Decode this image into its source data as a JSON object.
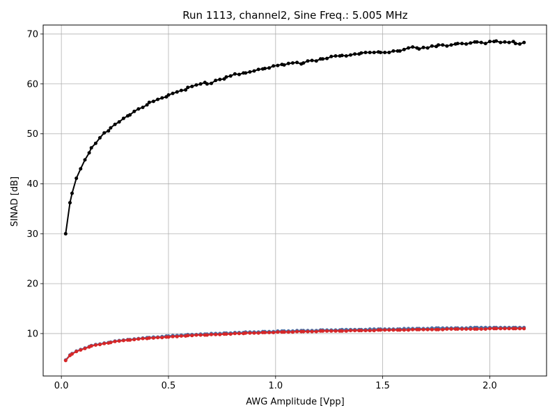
{
  "chart_data": {
    "type": "line",
    "title": "Run 1113, channel2, Sine Freq.: 5.005 MHz",
    "xlabel": "AWG Amplitude [Vpp]",
    "ylabel": "SINAD [dB]",
    "xlim": [
      -0.085,
      2.265
    ],
    "ylim": [
      1.5,
      71.8
    ],
    "xticks": [
      0.0,
      0.5,
      1.0,
      1.5,
      2.0
    ],
    "xtick_labels": [
      "0.0",
      "0.5",
      "1.0",
      "1.5",
      "2.0"
    ],
    "yticks": [
      10,
      20,
      30,
      40,
      50,
      60,
      70
    ],
    "ytick_labels": [
      "10",
      "20",
      "30",
      "40",
      "50",
      "60",
      "70"
    ],
    "grid": true,
    "series": [
      {
        "color": "#000000",
        "x": [
          0.02,
          0.04,
          0.05,
          0.07,
          0.09,
          0.11,
          0.13,
          0.14,
          0.16,
          0.18,
          0.2,
          0.22,
          0.23,
          0.25,
          0.27,
          0.29,
          0.31,
          0.32,
          0.34,
          0.36,
          0.38,
          0.4,
          0.41,
          0.43,
          0.45,
          0.47,
          0.49,
          0.5,
          0.52,
          0.54,
          0.56,
          0.58,
          0.59,
          0.61,
          0.63,
          0.65,
          0.67,
          0.68,
          0.7,
          0.72,
          0.74,
          0.76,
          0.77,
          0.79,
          0.81,
          0.83,
          0.85,
          0.86,
          0.88,
          0.9,
          0.92,
          0.94,
          0.95,
          0.97,
          0.99,
          1.01,
          1.03,
          1.04,
          1.06,
          1.08,
          1.1,
          1.12,
          1.13,
          1.15,
          1.17,
          1.19,
          1.21,
          1.22,
          1.24,
          1.26,
          1.28,
          1.3,
          1.31,
          1.33,
          1.35,
          1.37,
          1.39,
          1.4,
          1.42,
          1.44,
          1.46,
          1.48,
          1.49,
          1.51,
          1.53,
          1.55,
          1.57,
          1.58,
          1.6,
          1.62,
          1.64,
          1.66,
          1.67,
          1.69,
          1.71,
          1.73,
          1.75,
          1.76,
          1.78,
          1.8,
          1.82,
          1.84,
          1.85,
          1.87,
          1.89,
          1.91,
          1.93,
          1.94,
          1.96,
          1.98,
          2.0,
          2.02,
          2.03,
          2.05,
          2.07,
          2.09,
          2.11,
          2.12,
          2.14,
          2.16
        ],
        "y": [
          30.0,
          36.2,
          38.1,
          41.1,
          43.0,
          44.8,
          46.2,
          47.2,
          48.1,
          49.2,
          50.2,
          50.6,
          51.2,
          51.9,
          52.4,
          53.1,
          53.6,
          53.8,
          54.5,
          55.0,
          55.3,
          55.8,
          56.3,
          56.5,
          56.9,
          57.2,
          57.4,
          57.8,
          58.1,
          58.4,
          58.7,
          58.8,
          59.3,
          59.5,
          59.8,
          60.0,
          60.3,
          60.0,
          60.1,
          60.7,
          60.9,
          61.0,
          61.4,
          61.6,
          62.0,
          61.9,
          62.2,
          62.2,
          62.4,
          62.6,
          62.9,
          63.0,
          63.1,
          63.2,
          63.6,
          63.7,
          63.9,
          63.8,
          64.1,
          64.2,
          64.3,
          64.0,
          64.2,
          64.6,
          64.7,
          64.6,
          65.0,
          65.0,
          65.1,
          65.5,
          65.6,
          65.6,
          65.7,
          65.6,
          65.8,
          66.0,
          66.0,
          66.2,
          66.3,
          66.3,
          66.3,
          66.4,
          66.3,
          66.3,
          66.3,
          66.6,
          66.6,
          66.6,
          66.9,
          67.2,
          67.4,
          67.2,
          67.0,
          67.3,
          67.2,
          67.6,
          67.5,
          67.8,
          67.8,
          67.6,
          67.8,
          68.0,
          68.1,
          68.1,
          68.0,
          68.2,
          68.4,
          68.4,
          68.3,
          68.1,
          68.5,
          68.5,
          68.6,
          68.3,
          68.4,
          68.3,
          68.5,
          68.1,
          68.0,
          68.3
        ]
      },
      {
        "color": "#4a6fa5",
        "x": [
          0.02,
          0.04,
          0.05,
          0.07,
          0.09,
          0.11,
          0.13,
          0.14,
          0.16,
          0.18,
          0.2,
          0.22,
          0.23,
          0.25,
          0.27,
          0.29,
          0.31,
          0.32,
          0.34,
          0.36,
          0.38,
          0.4,
          0.41,
          0.43,
          0.45,
          0.47,
          0.49,
          0.5,
          0.52,
          0.54,
          0.56,
          0.58,
          0.59,
          0.61,
          0.63,
          0.65,
          0.67,
          0.68,
          0.7,
          0.72,
          0.74,
          0.76,
          0.77,
          0.79,
          0.81,
          0.83,
          0.85,
          0.86,
          0.88,
          0.9,
          0.92,
          0.94,
          0.95,
          0.97,
          0.99,
          1.01,
          1.03,
          1.04,
          1.06,
          1.08,
          1.1,
          1.12,
          1.13,
          1.15,
          1.17,
          1.19,
          1.21,
          1.22,
          1.24,
          1.26,
          1.28,
          1.3,
          1.31,
          1.33,
          1.35,
          1.37,
          1.39,
          1.4,
          1.42,
          1.44,
          1.46,
          1.48,
          1.49,
          1.51,
          1.53,
          1.55,
          1.57,
          1.58,
          1.6,
          1.62,
          1.64,
          1.66,
          1.67,
          1.69,
          1.71,
          1.73,
          1.75,
          1.76,
          1.78,
          1.8,
          1.82,
          1.84,
          1.85,
          1.87,
          1.89,
          1.91,
          1.93,
          1.94,
          1.96,
          1.98,
          2.0,
          2.02,
          2.03,
          2.05,
          2.07,
          2.09,
          2.11,
          2.12,
          2.14,
          2.16
        ],
        "y": [
          4.7,
          5.7,
          6.0,
          6.5,
          6.8,
          7.1,
          7.4,
          7.6,
          7.8,
          7.9,
          8.1,
          8.2,
          8.3,
          8.5,
          8.6,
          8.7,
          8.8,
          8.8,
          8.9,
          9.0,
          9.1,
          9.2,
          9.2,
          9.3,
          9.3,
          9.4,
          9.5,
          9.5,
          9.6,
          9.6,
          9.7,
          9.7,
          9.8,
          9.8,
          9.8,
          9.9,
          9.9,
          9.9,
          10.0,
          10.0,
          10.0,
          10.1,
          10.1,
          10.1,
          10.2,
          10.2,
          10.2,
          10.3,
          10.3,
          10.3,
          10.3,
          10.4,
          10.4,
          10.4,
          10.4,
          10.5,
          10.5,
          10.5,
          10.5,
          10.5,
          10.6,
          10.6,
          10.6,
          10.6,
          10.6,
          10.6,
          10.7,
          10.7,
          10.7,
          10.7,
          10.7,
          10.7,
          10.8,
          10.8,
          10.8,
          10.8,
          10.8,
          10.8,
          10.8,
          10.9,
          10.9,
          10.9,
          10.9,
          10.9,
          10.9,
          10.9,
          10.9,
          10.9,
          11.0,
          11.0,
          11.0,
          11.0,
          11.0,
          11.0,
          11.0,
          11.1,
          11.1,
          11.1,
          11.1,
          11.1,
          11.1,
          11.1,
          11.1,
          11.1,
          11.1,
          11.2,
          11.2,
          11.2,
          11.2,
          11.2,
          11.2,
          11.2,
          11.2,
          11.2,
          11.2,
          11.2,
          11.2,
          11.2,
          11.2,
          11.2
        ]
      },
      {
        "color": "#d62728",
        "x": [
          0.02,
          0.04,
          0.05,
          0.07,
          0.09,
          0.11,
          0.13,
          0.14,
          0.16,
          0.18,
          0.2,
          0.22,
          0.23,
          0.25,
          0.27,
          0.29,
          0.31,
          0.32,
          0.34,
          0.36,
          0.38,
          0.4,
          0.41,
          0.43,
          0.45,
          0.47,
          0.49,
          0.5,
          0.52,
          0.54,
          0.56,
          0.58,
          0.59,
          0.61,
          0.63,
          0.65,
          0.67,
          0.68,
          0.7,
          0.72,
          0.74,
          0.76,
          0.77,
          0.79,
          0.81,
          0.83,
          0.85,
          0.86,
          0.88,
          0.9,
          0.92,
          0.94,
          0.95,
          0.97,
          0.99,
          1.01,
          1.03,
          1.04,
          1.06,
          1.08,
          1.1,
          1.12,
          1.13,
          1.15,
          1.17,
          1.19,
          1.21,
          1.22,
          1.24,
          1.26,
          1.28,
          1.3,
          1.31,
          1.33,
          1.35,
          1.37,
          1.39,
          1.4,
          1.42,
          1.44,
          1.46,
          1.48,
          1.49,
          1.51,
          1.53,
          1.55,
          1.57,
          1.58,
          1.6,
          1.62,
          1.64,
          1.66,
          1.67,
          1.69,
          1.71,
          1.73,
          1.75,
          1.76,
          1.78,
          1.8,
          1.82,
          1.84,
          1.85,
          1.87,
          1.89,
          1.91,
          1.93,
          1.94,
          1.96,
          1.98,
          2.0,
          2.02,
          2.03,
          2.05,
          2.07,
          2.09,
          2.11,
          2.12,
          2.14,
          2.16
        ],
        "y": [
          4.6,
          5.6,
          5.9,
          6.4,
          6.7,
          7.0,
          7.3,
          7.5,
          7.7,
          7.8,
          8.0,
          8.1,
          8.2,
          8.4,
          8.5,
          8.6,
          8.7,
          8.7,
          8.8,
          8.9,
          9.0,
          9.0,
          9.1,
          9.1,
          9.2,
          9.2,
          9.3,
          9.3,
          9.4,
          9.4,
          9.5,
          9.5,
          9.6,
          9.6,
          9.7,
          9.7,
          9.7,
          9.7,
          9.8,
          9.8,
          9.8,
          9.9,
          9.9,
          9.9,
          10.0,
          10.0,
          10.0,
          10.1,
          10.1,
          10.1,
          10.1,
          10.2,
          10.2,
          10.2,
          10.2,
          10.3,
          10.3,
          10.3,
          10.3,
          10.3,
          10.4,
          10.4,
          10.4,
          10.4,
          10.4,
          10.4,
          10.5,
          10.5,
          10.5,
          10.5,
          10.5,
          10.5,
          10.5,
          10.5,
          10.6,
          10.6,
          10.6,
          10.6,
          10.6,
          10.6,
          10.6,
          10.7,
          10.7,
          10.7,
          10.7,
          10.7,
          10.7,
          10.7,
          10.7,
          10.7,
          10.8,
          10.8,
          10.8,
          10.8,
          10.8,
          10.8,
          10.8,
          10.8,
          10.8,
          10.9,
          10.9,
          10.9,
          10.9,
          10.9,
          10.9,
          10.9,
          10.9,
          10.9,
          10.9,
          10.9,
          11.0,
          11.0,
          11.0,
          11.0,
          11.0,
          11.0,
          11.0,
          11.0,
          11.0,
          11.0
        ]
      }
    ]
  }
}
